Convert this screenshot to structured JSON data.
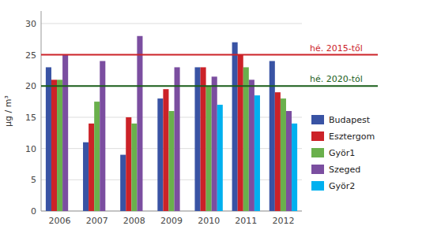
{
  "chart_data": {
    "type": "bar",
    "categories": [
      "2006",
      "2007",
      "2008",
      "2009",
      "2010",
      "2011",
      "2012"
    ],
    "series": [
      {
        "name": "Budapest",
        "color": "#3953a4",
        "values": [
          23,
          11,
          9,
          18,
          23,
          27,
          24
        ]
      },
      {
        "name": "Esztergom",
        "color": "#cc2228",
        "values": [
          21,
          14,
          15,
          19.5,
          23,
          25,
          19
        ]
      },
      {
        "name": "Györ1",
        "color": "#6ab04c",
        "values": [
          21,
          17.5,
          14,
          16,
          20,
          23,
          18
        ]
      },
      {
        "name": "Szeged",
        "color": "#7b4ea0",
        "values": [
          25,
          24,
          28,
          23,
          21.5,
          21,
          16
        ]
      },
      {
        "name": "Györ2",
        "color": "#00b0ef",
        "values": [
          null,
          null,
          null,
          null,
          17,
          18.5,
          14
        ]
      }
    ],
    "reference_lines": [
      {
        "value": 25,
        "label": "hé. 2015-től",
        "color": "#cc2228"
      },
      {
        "value": 20,
        "label": "hé. 2020-tól",
        "color": "#1a5e1a"
      }
    ],
    "y_label": "μg / m³",
    "ylim": [
      0,
      32
    ],
    "yticks": [
      0,
      5,
      10,
      15,
      20,
      25,
      30
    ],
    "grid": true,
    "legend": "right"
  }
}
